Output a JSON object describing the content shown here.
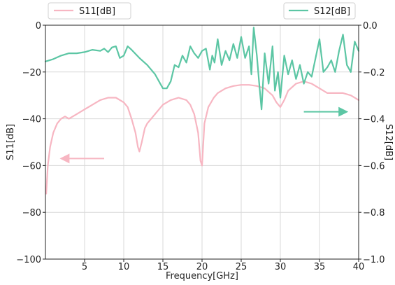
{
  "chart_data": {
    "type": "line",
    "xlabel": "Frequency[GHz]",
    "ylabel_left": "S11[dB]",
    "ylabel_right": "S12[dB]",
    "xlim": [
      0,
      40
    ],
    "ylim_left": [
      -100,
      0
    ],
    "ylim_right": [
      -1.0,
      0.0
    ],
    "x_ticks": [
      5,
      10,
      15,
      20,
      25,
      30,
      35,
      40
    ],
    "y_ticks_left": [
      0,
      -20,
      -40,
      -60,
      -80,
      -100
    ],
    "y_ticks_right": [
      0.0,
      -0.2,
      -0.4,
      -0.6,
      -0.8,
      -1.0
    ],
    "y_tick_labels_right": [
      "0.0",
      "−0.2",
      "−0.4",
      "−0.6",
      "−0.8",
      "−1.0"
    ],
    "grid": true,
    "colors": {
      "S11": "#f7b6c2",
      "S12": "#5cc6a4"
    },
    "series": [
      {
        "name": "S11[dB]",
        "axis": "left",
        "x": [
          0.1,
          0.3,
          0.6,
          1.0,
          1.5,
          2.0,
          2.5,
          3.0,
          4.0,
          5.0,
          6.0,
          7.0,
          8.0,
          9.0,
          10.0,
          10.5,
          11.0,
          11.5,
          11.8,
          12.0,
          12.3,
          12.7,
          13.0,
          14.0,
          15.0,
          16.0,
          17.0,
          18.0,
          18.5,
          19.0,
          19.5,
          19.8,
          20.0,
          20.3,
          20.8,
          21.5,
          22.0,
          23.0,
          24.0,
          25.0,
          26.0,
          27.0,
          28.0,
          29.0,
          29.5,
          30.0,
          30.5,
          31.0,
          32.0,
          33.0,
          34.0,
          35.0,
          36.0,
          37.0,
          38.0,
          39.0,
          40.0
        ],
        "values": [
          -72,
          -60,
          -52,
          -46,
          -42,
          -40,
          -39,
          -40,
          -38,
          -36,
          -34,
          -32,
          -31,
          -31,
          -33,
          -35,
          -40,
          -46,
          -52,
          -54,
          -50,
          -44,
          -42,
          -38,
          -34,
          -32,
          -31,
          -32,
          -34,
          -38,
          -46,
          -58,
          -60,
          -42,
          -35,
          -31,
          -29,
          -27,
          -26,
          -25.5,
          -25.5,
          -26,
          -27,
          -30,
          -33,
          -35,
          -32,
          -28,
          -25,
          -24,
          -25,
          -27,
          -29,
          -29,
          -29,
          -30,
          -32
        ]
      },
      {
        "name": "S12[dB]",
        "axis": "right",
        "x": [
          0,
          1,
          2,
          3,
          4,
          5,
          6,
          7,
          7.5,
          8,
          8.5,
          9,
          9.5,
          10,
          10.5,
          11,
          12,
          13,
          14,
          15,
          15.5,
          16,
          16.5,
          17,
          17.5,
          18,
          18.5,
          19,
          19.5,
          20,
          20.5,
          21,
          21.3,
          21.6,
          22,
          22.5,
          23,
          23.5,
          24,
          24.5,
          25,
          25.5,
          26,
          26.3,
          26.6,
          27,
          27.3,
          27.6,
          28,
          28.5,
          29,
          29.3,
          29.7,
          30,
          30.5,
          31,
          31.5,
          32,
          32.5,
          33,
          33.5,
          34,
          34.5,
          35,
          35.5,
          36,
          36.5,
          37,
          37.5,
          38,
          38.5,
          39,
          39.5,
          40
        ],
        "values": [
          -0.155,
          -0.145,
          -0.13,
          -0.12,
          -0.12,
          -0.115,
          -0.105,
          -0.11,
          -0.1,
          -0.115,
          -0.095,
          -0.09,
          -0.14,
          -0.13,
          -0.09,
          -0.105,
          -0.14,
          -0.17,
          -0.21,
          -0.27,
          -0.27,
          -0.24,
          -0.17,
          -0.18,
          -0.13,
          -0.16,
          -0.09,
          -0.12,
          -0.14,
          -0.11,
          -0.1,
          -0.19,
          -0.13,
          -0.16,
          -0.06,
          -0.17,
          -0.11,
          -0.15,
          -0.08,
          -0.14,
          -0.05,
          -0.14,
          -0.09,
          -0.21,
          -0.01,
          -0.13,
          -0.25,
          -0.36,
          -0.12,
          -0.25,
          -0.09,
          -0.28,
          -0.2,
          -0.31,
          -0.13,
          -0.21,
          -0.15,
          -0.23,
          -0.17,
          -0.25,
          -0.2,
          -0.22,
          -0.14,
          -0.06,
          -0.2,
          -0.18,
          -0.15,
          -0.2,
          -0.11,
          -0.04,
          -0.17,
          -0.2,
          -0.07,
          -0.11
        ]
      }
    ],
    "annotations": [
      {
        "type": "arrow",
        "direction": "left",
        "color": "#f7b6c2",
        "x_from": 7.5,
        "x_to": 2.0,
        "y_left": -57
      },
      {
        "type": "arrow",
        "direction": "right",
        "color": "#5cc6a4",
        "x_from": 33.0,
        "x_to": 38.5,
        "y_left": -37
      }
    ]
  }
}
